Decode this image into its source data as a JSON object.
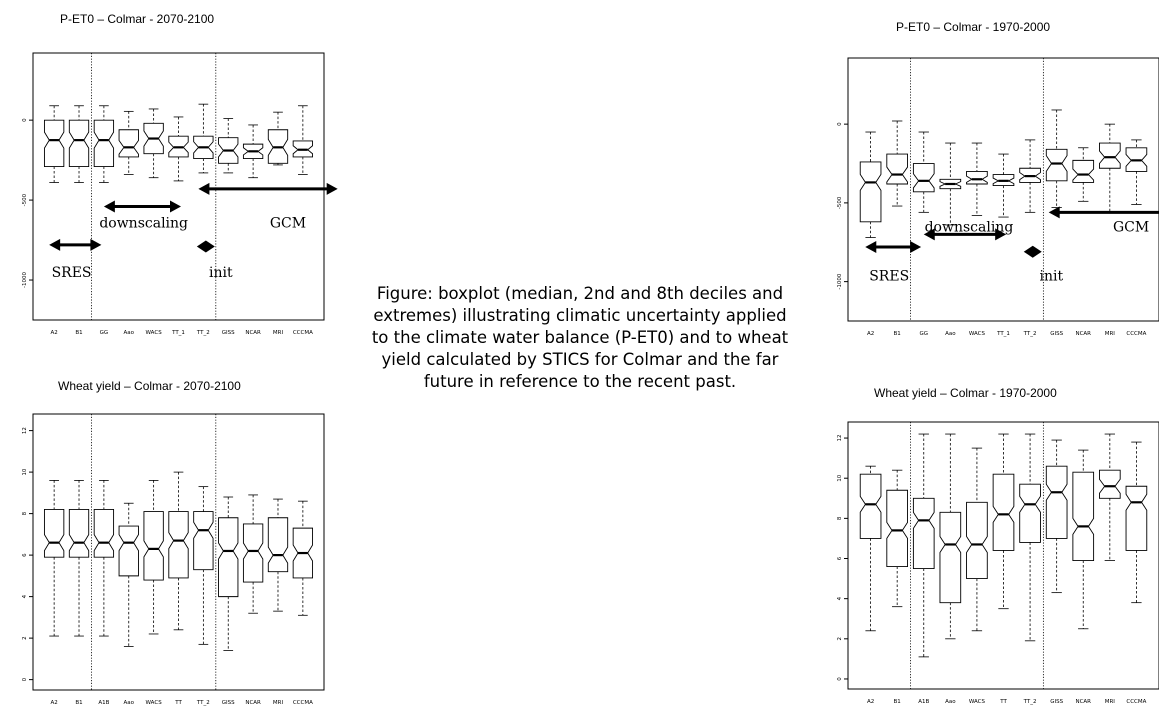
{
  "caption": "Figure: boxplot (median, 2nd and 8th deciles and extremes) illustrating climatic uncertainty applied to the climate water balance (P-ET0)  and to wheat yield calculated by STICS for Colmar and the far future in reference to the recent past.",
  "chart_data": [
    {
      "type": "boxplot",
      "title": "P-ET0 – Colmar - 2070-2100",
      "categories": [
        "A2",
        "B1",
        "GG",
        "Aao",
        "WACS",
        "TT_1",
        "TT_2",
        "GISS",
        "NCAR",
        "MRI",
        "CCCMA"
      ],
      "y_ticks": [
        0,
        -500,
        -1000
      ],
      "ylim": [
        -1250,
        420
      ],
      "separators_after": [
        2,
        7
      ],
      "annotations": [
        {
          "type": "double-arrow",
          "from": 0.3,
          "to": 2.4,
          "y": -780
        },
        {
          "type": "double-arrow",
          "from": 2.5,
          "to": 5.6,
          "y": -540
        },
        {
          "type": "double-arrow",
          "from": 6.3,
          "to": 11.9,
          "y": -430
        },
        {
          "type": "diamond",
          "at": 6.6,
          "y": -790
        },
        {
          "type": "text",
          "text": "downscaling",
          "at": 4.1,
          "y": -640
        },
        {
          "type": "text",
          "text": "GCM",
          "at": 9.9,
          "y": -640
        },
        {
          "type": "text",
          "text": "SRES",
          "at": 1.2,
          "y": -950
        },
        {
          "type": "text",
          "text": "init",
          "at": 7.2,
          "y": -950
        }
      ],
      "boxes": [
        {
          "min": -390,
          "q1": -290,
          "med": -125,
          "q3": 0,
          "max": 90
        },
        {
          "min": -390,
          "q1": -290,
          "med": -125,
          "q3": 0,
          "max": 90
        },
        {
          "min": -390,
          "q1": -290,
          "med": -125,
          "q3": 0,
          "max": 90
        },
        {
          "min": -340,
          "q1": -230,
          "med": -170,
          "q3": -60,
          "max": 55
        },
        {
          "min": -360,
          "q1": -210,
          "med": -115,
          "q3": -20,
          "max": 70
        },
        {
          "min": -380,
          "q1": -230,
          "med": -170,
          "q3": -100,
          "max": 20
        },
        {
          "min": -330,
          "q1": -240,
          "med": -170,
          "q3": -100,
          "max": 100
        },
        {
          "min": -330,
          "q1": -270,
          "med": -190,
          "q3": -110,
          "max": 10
        },
        {
          "min": -360,
          "q1": -240,
          "med": -195,
          "q3": -150,
          "max": -30
        },
        {
          "min": -280,
          "q1": -270,
          "med": -170,
          "q3": -60,
          "max": 50
        },
        {
          "min": -340,
          "q1": -230,
          "med": -185,
          "q3": -130,
          "max": 90
        }
      ]
    },
    {
      "type": "boxplot",
      "title": "P-ET0 – Colmar - 1970-2000",
      "categories": [
        "A2",
        "B1",
        "GG",
        "Aao",
        "WACS",
        "TT_1",
        "TT_2",
        "GISS",
        "NCAR",
        "MRI",
        "CCCMA"
      ],
      "y_ticks": [
        0,
        -500,
        -1000
      ],
      "ylim": [
        -1250,
        420
      ],
      "separators_after": [
        2,
        7
      ],
      "annotations": [
        {
          "type": "double-arrow",
          "from": 0.3,
          "to": 2.4,
          "y": -780
        },
        {
          "type": "double-arrow",
          "from": 2.5,
          "to": 5.6,
          "y": -700
        },
        {
          "type": "double-arrow",
          "from": 7.2,
          "to": 11.9,
          "y": -560
        },
        {
          "type": "diamond",
          "at": 6.6,
          "y": -810
        },
        {
          "type": "text",
          "text": "downscaling",
          "at": 4.2,
          "y": -650
        },
        {
          "type": "text",
          "text": "GCM",
          "at": 10.3,
          "y": -650
        },
        {
          "type": "text",
          "text": "SRES",
          "at": 1.2,
          "y": -960
        },
        {
          "type": "text",
          "text": "init",
          "at": 7.3,
          "y": -960
        }
      ],
      "boxes": [
        {
          "min": -720,
          "q1": -620,
          "med": -370,
          "q3": -240,
          "max": -50
        },
        {
          "min": -520,
          "q1": -380,
          "med": -320,
          "q3": -190,
          "max": 20
        },
        {
          "min": -560,
          "q1": -430,
          "med": -360,
          "q3": -250,
          "max": -50
        },
        {
          "min": -640,
          "q1": -410,
          "med": -380,
          "q3": -350,
          "max": -120
        },
        {
          "min": -580,
          "q1": -380,
          "med": -350,
          "q3": -300,
          "max": -120
        },
        {
          "min": -590,
          "q1": -390,
          "med": -360,
          "q3": -320,
          "max": -190
        },
        {
          "min": -560,
          "q1": -370,
          "med": -330,
          "q3": -280,
          "max": -100
        },
        {
          "min": -530,
          "q1": -360,
          "med": -250,
          "q3": -160,
          "max": 90
        },
        {
          "min": -490,
          "q1": -370,
          "med": -320,
          "q3": -230,
          "max": -150
        },
        {
          "min": -560,
          "q1": -280,
          "med": -210,
          "q3": -120,
          "max": 0
        },
        {
          "min": -510,
          "q1": -300,
          "med": -230,
          "q3": -150,
          "max": -100
        }
      ]
    },
    {
      "type": "boxplot",
      "title": "Wheat yield – Colmar - 2070-2100",
      "categories": [
        "A2",
        "B1",
        "A1B",
        "Aao",
        "WACS",
        "TT",
        "TT_2",
        "GISS",
        "NCAR",
        "MRI",
        "CCCMA"
      ],
      "y_ticks": [
        0,
        2,
        4,
        6,
        8,
        10,
        12
      ],
      "ylim": [
        -0.5,
        12.8
      ],
      "separators_after": [
        2,
        7
      ],
      "annotations": [],
      "boxes": [
        {
          "min": 2.1,
          "q1": 5.9,
          "med": 6.6,
          "q3": 8.2,
          "max": 9.6
        },
        {
          "min": 2.1,
          "q1": 5.9,
          "med": 6.6,
          "q3": 8.2,
          "max": 9.6
        },
        {
          "min": 2.1,
          "q1": 5.9,
          "med": 6.6,
          "q3": 8.2,
          "max": 9.6
        },
        {
          "min": 1.6,
          "q1": 5.0,
          "med": 6.6,
          "q3": 7.4,
          "max": 8.5
        },
        {
          "min": 2.2,
          "q1": 4.8,
          "med": 6.3,
          "q3": 8.1,
          "max": 9.6
        },
        {
          "min": 2.4,
          "q1": 4.9,
          "med": 6.7,
          "q3": 8.1,
          "max": 10.0
        },
        {
          "min": 1.7,
          "q1": 5.3,
          "med": 7.2,
          "q3": 8.1,
          "max": 9.3
        },
        {
          "min": 1.4,
          "q1": 4.0,
          "med": 6.2,
          "q3": 7.8,
          "max": 8.8
        },
        {
          "min": 3.2,
          "q1": 4.7,
          "med": 6.2,
          "q3": 7.5,
          "max": 8.9
        },
        {
          "min": 3.3,
          "q1": 5.2,
          "med": 6.0,
          "q3": 7.8,
          "max": 8.7
        },
        {
          "min": 3.1,
          "q1": 4.9,
          "med": 6.1,
          "q3": 7.3,
          "max": 8.6
        }
      ]
    },
    {
      "type": "boxplot",
      "title": "Wheat yield – Colmar - 1970-2000",
      "categories": [
        "A2",
        "B1",
        "A1B",
        "Aao",
        "WACS",
        "TT",
        "TT_2",
        "GISS",
        "NCAR",
        "MRI",
        "CCCMA"
      ],
      "y_ticks": [
        0,
        2,
        4,
        6,
        8,
        10,
        12
      ],
      "ylim": [
        -0.5,
        12.8
      ],
      "separators_after": [
        2,
        7
      ],
      "annotations": [],
      "boxes": [
        {
          "min": 2.4,
          "q1": 7.0,
          "med": 8.7,
          "q3": 10.2,
          "max": 10.6
        },
        {
          "min": 3.6,
          "q1": 5.6,
          "med": 7.4,
          "q3": 9.4,
          "max": 10.4
        },
        {
          "min": 1.1,
          "q1": 5.5,
          "med": 7.9,
          "q3": 9.0,
          "max": 12.2
        },
        {
          "min": 2.0,
          "q1": 3.8,
          "med": 6.7,
          "q3": 8.3,
          "max": 12.2
        },
        {
          "min": 2.4,
          "q1": 5.0,
          "med": 6.7,
          "q3": 8.8,
          "max": 11.5
        },
        {
          "min": 3.5,
          "q1": 6.4,
          "med": 8.2,
          "q3": 10.2,
          "max": 12.2
        },
        {
          "min": 1.9,
          "q1": 6.8,
          "med": 8.7,
          "q3": 9.7,
          "max": 12.2
        },
        {
          "min": 4.3,
          "q1": 7.0,
          "med": 9.3,
          "q3": 10.6,
          "max": 11.9
        },
        {
          "min": 2.5,
          "q1": 5.9,
          "med": 7.6,
          "q3": 10.3,
          "max": 11.4
        },
        {
          "min": 5.9,
          "q1": 9.0,
          "med": 9.6,
          "q3": 10.4,
          "max": 12.2
        },
        {
          "min": 3.8,
          "q1": 6.4,
          "med": 8.8,
          "q3": 9.6,
          "max": 11.8
        }
      ]
    }
  ]
}
